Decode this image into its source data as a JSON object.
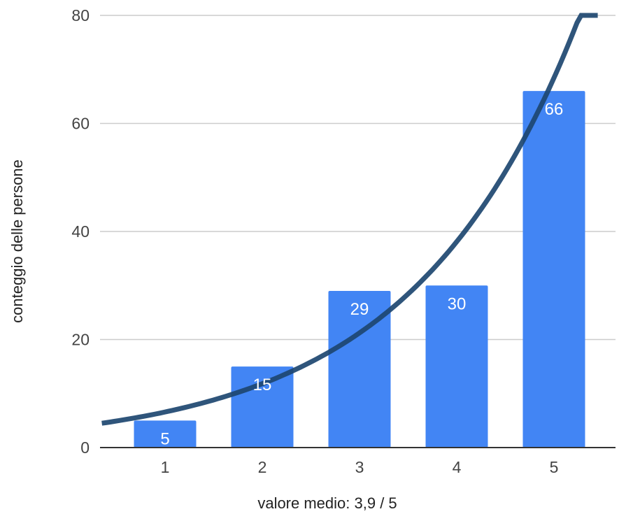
{
  "chart_data": {
    "type": "bar",
    "title": "",
    "xlabel": "valore medio: 3,9 / 5",
    "ylabel": "conteggio delle persone",
    "categories": [
      "1",
      "2",
      "3",
      "4",
      "5"
    ],
    "values": [
      5,
      15,
      29,
      30,
      66
    ],
    "data_labels": [
      "5",
      "15",
      "29",
      "30",
      "66"
    ],
    "ylim": [
      0,
      80
    ],
    "yticks": [
      0,
      20,
      40,
      60,
      80
    ],
    "ytick_labels": [
      "0",
      "20",
      "40",
      "60",
      "80"
    ],
    "grid": true,
    "legend": "none",
    "trendline": {
      "type": "exponential",
      "x_range": [
        0.35,
        5.45
      ],
      "color": "#1d4670"
    },
    "colors": {
      "bar": "#4285f4",
      "grid": "#cccccc",
      "axis": "#333333",
      "trendline": "#1d4670"
    }
  }
}
